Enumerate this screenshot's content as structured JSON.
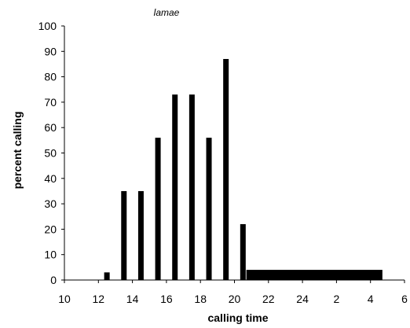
{
  "chart_data": {
    "type": "bar",
    "title": "lamae",
    "xlabel": "calling time",
    "ylabel": "percent calling",
    "ylim": [
      0,
      100
    ],
    "yticks": [
      "0",
      "10",
      "20",
      "30",
      "40",
      "50",
      "60",
      "70",
      "80",
      "90",
      "100"
    ],
    "xticks": [
      "10",
      "12",
      "14",
      "16",
      "18",
      "20",
      "22",
      "24",
      "2",
      "4",
      "6"
    ],
    "grid": false,
    "legend": "none",
    "bar_color": "#000000",
    "series": [
      {
        "values": [
          {
            "x": 12.5,
            "y": 3
          },
          {
            "x": 13.5,
            "y": 35
          },
          {
            "x": 14.5,
            "y": 35
          },
          {
            "x": 15.5,
            "y": 56
          },
          {
            "x": 16.5,
            "y": 73
          },
          {
            "x": 17.5,
            "y": 73
          },
          {
            "x": 18.5,
            "y": 56
          },
          {
            "x": 19.5,
            "y": 87
          },
          {
            "x": 20.5,
            "y": 22
          }
        ]
      }
    ],
    "band": {
      "from": "20.7",
      "to": "4.7",
      "y": 4
    }
  }
}
